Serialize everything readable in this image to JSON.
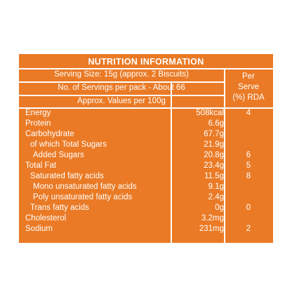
{
  "panel": {
    "title": "NUTRITION INFORMATION",
    "serving_size": "Serving Size: 15g (approx. 2 Biscuits)",
    "servings_per_pack": "No. of Servings per pack - About 66",
    "values_header": "Approx. Values per 100g",
    "rda_header": [
      "Per",
      "Serve",
      "(%) RDA"
    ],
    "colors": {
      "background": "#ea7a25",
      "text": "#ffffff"
    }
  },
  "rows": [
    {
      "name": "Energy",
      "value": "508kcal",
      "rda": "4"
    },
    {
      "name": "Protein",
      "value": "6.6g",
      "rda": ""
    },
    {
      "name": "Carbohydrate",
      "value": "67.7g",
      "rda": ""
    },
    {
      "name": "of which Total Sugars",
      "value": "21.9g",
      "rda": ""
    },
    {
      "name": "Added Sugars",
      "value": "20.8g",
      "rda": "6"
    },
    {
      "name": "Total Fat",
      "value": "23.4g",
      "rda": "5"
    },
    {
      "name": "Saturated fatty acids",
      "value": "11.5g",
      "rda": "8"
    },
    {
      "name": "Mono unsaturated fatty acids",
      "value": "9.1g",
      "rda": ""
    },
    {
      "name": "Poly unsaturated fatty acids",
      "value": "2.4g",
      "rda": ""
    },
    {
      "name": "Trans fatty acids",
      "value": "0g",
      "rda": "0"
    },
    {
      "name": "Cholesterol",
      "value": "3.2mg",
      "rda": ""
    },
    {
      "name": "Sodium",
      "value": "231mg",
      "rda": "2"
    }
  ]
}
